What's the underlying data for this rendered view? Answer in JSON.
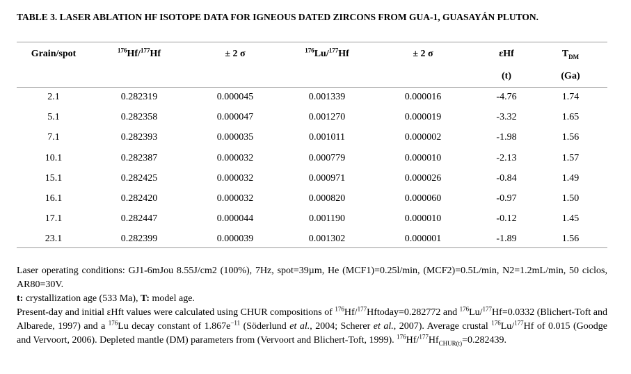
{
  "title": "TABLE 3. LASER ABLATION HF ISOTOPE DATA FOR IGNEOUS DATED ZIRCONS FROM GUA-1, GUASAYÁN PLUTON.",
  "table": {
    "columns": [
      {
        "label": [
          {
            "text": "Grain/spot"
          }
        ]
      },
      {
        "label": [
          {
            "sup": "176"
          },
          {
            "text": "Hf/"
          },
          {
            "sup": "177"
          },
          {
            "text": "Hf"
          }
        ]
      },
      {
        "label": [
          {
            "text": "± 2 σ"
          }
        ]
      },
      {
        "label": [
          {
            "sup": "176"
          },
          {
            "text": "Lu/"
          },
          {
            "sup": "177"
          },
          {
            "text": "Hf"
          }
        ]
      },
      {
        "label": [
          {
            "text": "± 2 σ"
          }
        ]
      },
      {
        "label": [
          {
            "text": "εHf"
          }
        ],
        "unit": "(t)"
      },
      {
        "label": [
          {
            "text": "T"
          },
          {
            "sub": "DM"
          }
        ],
        "unit": "(Ga)"
      }
    ],
    "rows": [
      [
        "2.1",
        "0.282319",
        "0.000045",
        "0.001339",
        "0.000016",
        "-4.76",
        "1.74"
      ],
      [
        "5.1",
        "0.282358",
        "0.000047",
        "0.001270",
        "0.000019",
        "-3.32",
        "1.65"
      ],
      [
        "7.1",
        "0.282393",
        "0.000035",
        "0.001011",
        "0.000002",
        "-1.98",
        "1.56"
      ],
      [
        "10.1",
        "0.282387",
        "0.000032",
        "0.000779",
        "0.000010",
        "-2.13",
        "1.57"
      ],
      [
        "15.1",
        "0.282425",
        "0.000032",
        "0.000971",
        "0.000026",
        "-0.84",
        "1.49"
      ],
      [
        "16.1",
        "0.282420",
        "0.000032",
        "0.000820",
        "0.000060",
        "-0.97",
        "1.50"
      ],
      [
        "17.1",
        "0.282447",
        "0.000044",
        "0.001190",
        "0.000010",
        "-0.12",
        "1.45"
      ],
      [
        "23.1",
        "0.282399",
        "0.000039",
        "0.001302",
        "0.000001",
        "-1.89",
        "1.56"
      ]
    ]
  },
  "notes": [
    [
      {
        "text": "Laser operating conditions: GJ1-6mJou 8.55J/cm2 (100%), 7Hz, spot=39µm, He (MCF1)=0.25l/min, (MCF2)=0.5L/min, N2=1.2mL/min, 50 ciclos, AR80=30V."
      }
    ],
    [
      {
        "bold": "t:"
      },
      {
        "text": " crystallization age (533 Ma), "
      },
      {
        "bold": "T:"
      },
      {
        "text": " model age."
      }
    ],
    [
      {
        "text": "Present-day and initial εHft values were calculated using CHUR compositions of "
      },
      {
        "sup": "176"
      },
      {
        "text": "Hf/"
      },
      {
        "sup": "177"
      },
      {
        "text": "Hftoday=0.282772 and "
      },
      {
        "sup": "176"
      },
      {
        "text": "Lu/"
      },
      {
        "sup": "177"
      },
      {
        "text": "Hf=0.0332 (Blichert-Toft and Albarede, 1997) and a "
      },
      {
        "sup": "176"
      },
      {
        "text": "Lu decay constant of 1.867e"
      },
      {
        "sup": "−11"
      },
      {
        "text": " (Söderlund "
      },
      {
        "italic": "et al."
      },
      {
        "text": ", 2004; Scherer "
      },
      {
        "italic": "et al."
      },
      {
        "text": ", 2007). Average crustal "
      },
      {
        "sup": "176"
      },
      {
        "text": "Lu/"
      },
      {
        "sup": "177"
      },
      {
        "text": "Hf of 0.015 (Goodge and Vervoort, 2006). Depleted mantle (DM) parameters from (Vervoort and Blichert-Toft, 1999). "
      },
      {
        "sup": "176"
      },
      {
        "text": "Hf/"
      },
      {
        "sup": "177"
      },
      {
        "text": "Hf"
      },
      {
        "sub": "CHUR(t)"
      },
      {
        "text": "=0.282439."
      }
    ]
  ]
}
